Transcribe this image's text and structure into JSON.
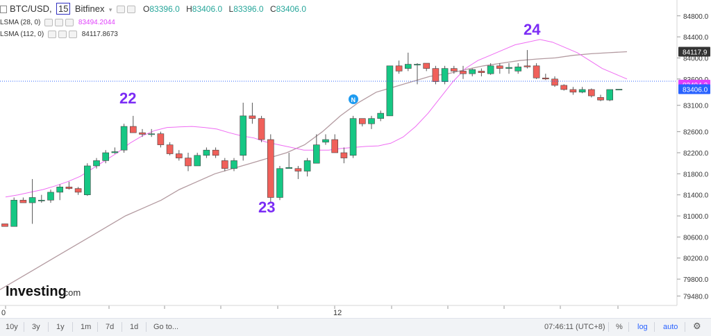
{
  "header": {
    "symbol": "BTC/USD,",
    "interval": "15",
    "exchange": "Bitfinex",
    "o_label": "O",
    "o_value": "83396.0",
    "h_label": "H",
    "h_value": "83406.0",
    "l_label": "L",
    "l_value": "83396.0",
    "c_label": "C",
    "c_value": "83406.0"
  },
  "indicators": [
    {
      "label": "LSMA (28, 0)",
      "value": "83494.2044",
      "color": "#e040fb"
    },
    {
      "label": "LSMA (112, 0)",
      "value": "84117.8673",
      "color": "#333333"
    }
  ],
  "colors": {
    "up": "#26a69a",
    "up_fill": "#16c784",
    "down": "#ef5350",
    "down_fill": "#f0605a",
    "lsma28": "#ef6cf3",
    "lsma112": "#b39aa0",
    "annotation": "#7b2cf5",
    "price_line": "#2962ff"
  },
  "axis": {
    "ticks": [
      "84800.0",
      "84400.0",
      "84000.0",
      "83600.0",
      "83100.0",
      "82600.0",
      "82200.0",
      "81800.0",
      "81400.0",
      "81000.0",
      "80600.0",
      "80200.0",
      "79800.0",
      "79480.0"
    ],
    "x_label": "12",
    "x_label_left": "0"
  },
  "price_tags": [
    {
      "text": "84117.9",
      "bg": "#333333"
    },
    {
      "text": "83494.2",
      "bg": "#e040fb"
    },
    {
      "text": "83406.0",
      "bg": "#2962ff"
    }
  ],
  "annotations": [
    "22",
    "23",
    "24"
  ],
  "news_marker": "N",
  "watermark": {
    "text": "Investing",
    "suffix": ".com"
  },
  "toolbar": {
    "ranges": [
      "10y",
      "3y",
      "1y",
      "1m",
      "7d",
      "1d"
    ],
    "goto": "Go to...",
    "time": "07:46:11 (UTC+8)",
    "percent": "%",
    "log": "log",
    "auto": "auto",
    "settings_icon": "gear-icon"
  },
  "chart_data": {
    "type": "candlestick",
    "ylim": [
      79300,
      85100
    ],
    "candles": [
      {
        "o": 80850,
        "h": 80850,
        "l": 80800,
        "c": 80800
      },
      {
        "o": 80800,
        "h": 81350,
        "l": 80800,
        "c": 81300
      },
      {
        "o": 81300,
        "h": 81350,
        "l": 81250,
        "c": 81250
      },
      {
        "o": 81250,
        "h": 81700,
        "l": 80850,
        "c": 81350
      },
      {
        "o": 81300,
        "h": 81400,
        "l": 81250,
        "c": 81300
      },
      {
        "o": 81300,
        "h": 81500,
        "l": 81250,
        "c": 81450
      },
      {
        "o": 81450,
        "h": 81600,
        "l": 81300,
        "c": 81550
      },
      {
        "o": 81550,
        "h": 81650,
        "l": 81500,
        "c": 81520
      },
      {
        "o": 81520,
        "h": 81550,
        "l": 81400,
        "c": 81450
      },
      {
        "o": 81400,
        "h": 82000,
        "l": 81380,
        "c": 81950
      },
      {
        "o": 81950,
        "h": 82100,
        "l": 81900,
        "c": 82050
      },
      {
        "o": 82050,
        "h": 82250,
        "l": 82000,
        "c": 82200
      },
      {
        "o": 82200,
        "h": 82300,
        "l": 82180,
        "c": 82220
      },
      {
        "o": 82250,
        "h": 82750,
        "l": 82200,
        "c": 82700
      },
      {
        "o": 82700,
        "h": 82900,
        "l": 82600,
        "c": 82580
      },
      {
        "o": 82580,
        "h": 82650,
        "l": 82500,
        "c": 82550
      },
      {
        "o": 82550,
        "h": 82650,
        "l": 82500,
        "c": 82560
      },
      {
        "o": 82560,
        "h": 82600,
        "l": 82300,
        "c": 82350
      },
      {
        "o": 82350,
        "h": 82400,
        "l": 82150,
        "c": 82180
      },
      {
        "o": 82180,
        "h": 82250,
        "l": 82050,
        "c": 82100
      },
      {
        "o": 82100,
        "h": 82200,
        "l": 81850,
        "c": 81950
      },
      {
        "o": 81950,
        "h": 82200,
        "l": 81950,
        "c": 82150
      },
      {
        "o": 82150,
        "h": 82300,
        "l": 82100,
        "c": 82250
      },
      {
        "o": 82250,
        "h": 82300,
        "l": 82100,
        "c": 82150
      },
      {
        "o": 82050,
        "h": 82100,
        "l": 81850,
        "c": 81900
      },
      {
        "o": 81900,
        "h": 82100,
        "l": 81850,
        "c": 82050
      },
      {
        "o": 82150,
        "h": 83150,
        "l": 82050,
        "c": 82900
      },
      {
        "o": 82900,
        "h": 83150,
        "l": 82750,
        "c": 82850
      },
      {
        "o": 82850,
        "h": 82900,
        "l": 82400,
        "c": 82450
      },
      {
        "o": 82450,
        "h": 82550,
        "l": 81250,
        "c": 81350
      },
      {
        "o": 81350,
        "h": 81950,
        "l": 81300,
        "c": 81900
      },
      {
        "o": 81900,
        "h": 82200,
        "l": 81900,
        "c": 81920
      },
      {
        "o": 81900,
        "h": 81950,
        "l": 81700,
        "c": 81850
      },
      {
        "o": 81850,
        "h": 82100,
        "l": 81750,
        "c": 82050
      },
      {
        "o": 82000,
        "h": 82550,
        "l": 82000,
        "c": 82350
      },
      {
        "o": 82400,
        "h": 82550,
        "l": 82350,
        "c": 82450
      },
      {
        "o": 82450,
        "h": 82550,
        "l": 82200,
        "c": 82200
      },
      {
        "o": 82200,
        "h": 82300,
        "l": 82000,
        "c": 82100
      },
      {
        "o": 82150,
        "h": 82900,
        "l": 82100,
        "c": 82850
      },
      {
        "o": 82850,
        "h": 82850,
        "l": 82700,
        "c": 82750
      },
      {
        "o": 82750,
        "h": 82900,
        "l": 82650,
        "c": 82850
      },
      {
        "o": 82850,
        "h": 83000,
        "l": 82800,
        "c": 82950
      },
      {
        "o": 82900,
        "h": 83850,
        "l": 82900,
        "c": 83850
      },
      {
        "o": 83850,
        "h": 83950,
        "l": 83700,
        "c": 83750
      },
      {
        "o": 83800,
        "h": 84100,
        "l": 83750,
        "c": 83880
      },
      {
        "o": 83880,
        "h": 83900,
        "l": 83500,
        "c": 83880
      },
      {
        "o": 83900,
        "h": 83900,
        "l": 83750,
        "c": 83800
      },
      {
        "o": 83800,
        "h": 83850,
        "l": 83500,
        "c": 83550
      },
      {
        "o": 83550,
        "h": 83850,
        "l": 83500,
        "c": 83800
      },
      {
        "o": 83800,
        "h": 83850,
        "l": 83700,
        "c": 83750
      },
      {
        "o": 83750,
        "h": 83850,
        "l": 83600,
        "c": 83700
      },
      {
        "o": 83700,
        "h": 83800,
        "l": 83650,
        "c": 83780
      },
      {
        "o": 83750,
        "h": 83800,
        "l": 83650,
        "c": 83720
      },
      {
        "o": 83700,
        "h": 83900,
        "l": 83680,
        "c": 83850
      },
      {
        "o": 83850,
        "h": 83900,
        "l": 83700,
        "c": 83800
      },
      {
        "o": 83800,
        "h": 83900,
        "l": 83700,
        "c": 83820
      },
      {
        "o": 83750,
        "h": 83900,
        "l": 83700,
        "c": 83830
      },
      {
        "o": 83850,
        "h": 84150,
        "l": 83800,
        "c": 83830
      },
      {
        "o": 83850,
        "h": 83900,
        "l": 83600,
        "c": 83620
      },
      {
        "o": 83620,
        "h": 83700,
        "l": 83580,
        "c": 83600
      },
      {
        "o": 83600,
        "h": 83650,
        "l": 83450,
        "c": 83480
      },
      {
        "o": 83480,
        "h": 83500,
        "l": 83380,
        "c": 83400
      },
      {
        "o": 83400,
        "h": 83450,
        "l": 83300,
        "c": 83350
      },
      {
        "o": 83350,
        "h": 83450,
        "l": 83330,
        "c": 83400
      },
      {
        "o": 83400,
        "h": 83420,
        "l": 83250,
        "c": 83280
      },
      {
        "o": 83250,
        "h": 83300,
        "l": 83180,
        "c": 83200
      },
      {
        "o": 83200,
        "h": 83400,
        "l": 83180,
        "c": 83400
      },
      {
        "o": 83396,
        "h": 83406,
        "l": 83396,
        "c": 83406
      }
    ],
    "lsma28": [
      81360,
      81400,
      81450,
      81500,
      81570,
      81650,
      81750,
      81900,
      82050,
      82200,
      82380,
      82520,
      82620,
      82680,
      82690,
      82700,
      82680,
      82650,
      82580,
      82520,
      82480,
      82400,
      82350,
      82300,
      82250,
      82250,
      82250,
      82280,
      82300,
      82320,
      82330,
      82380,
      82500,
      82700,
      82950,
      83250,
      83550,
      83800,
      83950,
      84050,
      84150,
      84250,
      84300,
      84350,
      84300,
      84200,
      84100,
      83950,
      83800,
      83700,
      83600
    ],
    "lsma112": [
      79600,
      79800,
      80000,
      80200,
      80400,
      80600,
      80800,
      81000,
      81150,
      81300,
      81500,
      81650,
      81800,
      81900,
      82000,
      82100,
      82200,
      82350,
      82600,
      82900,
      83150,
      83350,
      83450,
      83550,
      83650,
      83700,
      83780,
      83850,
      83900,
      83950,
      83980,
      84000,
      84050,
      84080,
      84100,
      84117.87
    ]
  }
}
